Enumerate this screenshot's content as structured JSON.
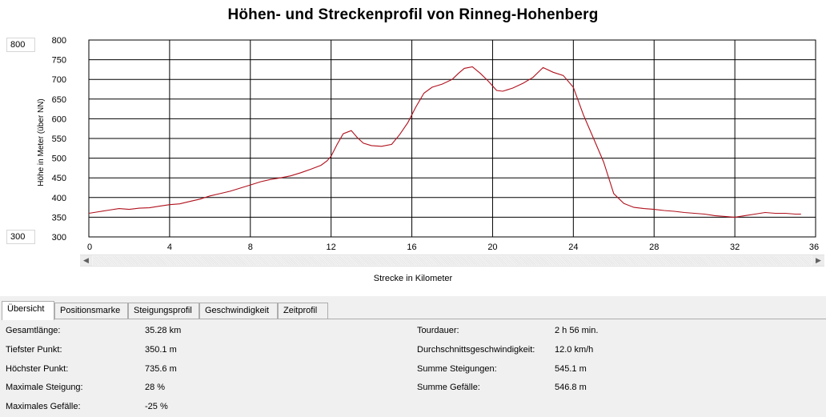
{
  "chart_data": {
    "type": "line",
    "title": "Höhen- und Streckenprofil von Rinneg-Hohenberg",
    "xlabel": "Strecke in Kilometer",
    "ylabel": "Höhe in Meter (über NN)",
    "xlim": [
      0,
      36
    ],
    "ylim": [
      300,
      800
    ],
    "x_ticks": [
      "0",
      "4",
      "8",
      "12",
      "16",
      "20",
      "24",
      "28",
      "32",
      "36"
    ],
    "y_ticks": [
      "800",
      "750",
      "700",
      "650",
      "600",
      "550",
      "500",
      "450",
      "400",
      "350",
      "300"
    ],
    "grid": true,
    "line_color": "#b0101c",
    "series": [
      {
        "x": [
          0,
          0.5,
          1,
          1.5,
          2,
          2.5,
          3,
          3.5,
          4,
          4.5,
          5,
          5.5,
          6,
          6.5,
          7,
          7.5,
          8,
          8.5,
          9,
          9.5,
          10,
          10.5,
          11,
          11.5,
          11.8,
          12,
          12.3,
          12.6,
          13,
          13.3,
          13.6,
          14,
          14.5,
          15,
          15.4,
          15.8,
          16.2,
          16.6,
          17,
          17.5,
          18,
          18.3,
          18.6,
          19,
          19.4,
          19.8,
          20.2,
          20.5,
          21,
          21.5,
          22,
          22.5,
          23,
          23.5,
          24,
          24.5,
          25,
          25.5,
          26,
          26.5,
          27,
          27.5,
          28,
          28.5,
          29,
          29.5,
          30,
          30.5,
          31,
          31.5,
          32,
          32.5,
          33,
          33.5,
          34,
          34.5,
          35,
          35.28
        ],
        "y": [
          360,
          364,
          368,
          372,
          370,
          373,
          374,
          378,
          382,
          384,
          390,
          396,
          404,
          410,
          416,
          424,
          432,
          440,
          446,
          450,
          455,
          463,
          472,
          482,
          493,
          505,
          535,
          562,
          570,
          552,
          538,
          532,
          530,
          535,
          560,
          590,
          630,
          665,
          680,
          688,
          700,
          715,
          728,
          732,
          715,
          695,
          672,
          670,
          678,
          690,
          705,
          730,
          718,
          710,
          680,
          610,
          550,
          490,
          410,
          385,
          375,
          372,
          370,
          367,
          365,
          362,
          360,
          358,
          354,
          352,
          350,
          354,
          358,
          362,
          360,
          360,
          358,
          358
        ]
      }
    ]
  },
  "controls": {
    "y_max_value": "800",
    "y_min_value": "300"
  },
  "tabs": [
    "Übersicht",
    "Positionsmarke",
    "Steigungsprofil",
    "Geschwindigkeit",
    "Zeitprofil"
  ],
  "stats_left": [
    {
      "label": "Gesamtlänge:",
      "value": "35.28 km"
    },
    {
      "label": "Tiefster Punkt:",
      "value": "350.1 m"
    },
    {
      "label": "Höchster Punkt:",
      "value": "735.6 m"
    },
    {
      "label": "Maximale Steigung:",
      "value": "28 %"
    },
    {
      "label": "Maximales Gefälle:",
      "value": "-25 %"
    }
  ],
  "stats_right": [
    {
      "label": "Tourdauer:",
      "value": "2 h 56 min."
    },
    {
      "label": "Durchschnittsgeschwindigkeit:",
      "value": "12.0 km/h"
    },
    {
      "label": "Summe Steigungen:",
      "value": "545.1 m"
    },
    {
      "label": "Summe Gefälle:",
      "value": "546.8 m"
    }
  ]
}
